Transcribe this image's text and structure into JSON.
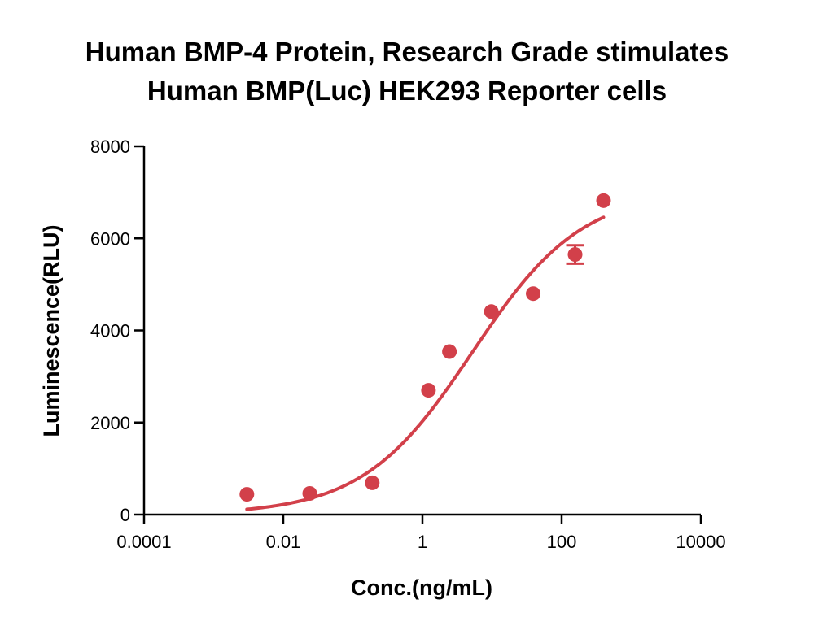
{
  "chart_data": {
    "type": "scatter",
    "title_lines": [
      "Human BMP-4 Protein, Research Grade stimulates",
      "Human BMP(Luc) HEK293 Reporter cells"
    ],
    "xlabel": "Conc.(ng/mL)",
    "ylabel": "Luminescence(RLU)",
    "x_scale": "log",
    "xlim": [
      0.0001,
      10000
    ],
    "ylim": [
      0,
      8000
    ],
    "x_ticks": [
      {
        "value": 0.0001,
        "label": "0.0001"
      },
      {
        "value": 0.01,
        "label": "0.01"
      },
      {
        "value": 1,
        "label": "1"
      },
      {
        "value": 100,
        "label": "100"
      },
      {
        "value": 10000,
        "label": "10000"
      }
    ],
    "y_ticks": [
      {
        "value": 0,
        "label": "0"
      },
      {
        "value": 2000,
        "label": "2000"
      },
      {
        "value": 4000,
        "label": "4000"
      },
      {
        "value": 6000,
        "label": "6000"
      },
      {
        "value": 8000,
        "label": "8000"
      }
    ],
    "grid": false,
    "color": "#d2404a",
    "points": [
      {
        "x": 0.003,
        "y": 440
      },
      {
        "x": 0.024,
        "y": 460
      },
      {
        "x": 0.19,
        "y": 690
      },
      {
        "x": 1.22,
        "y": 2700
      },
      {
        "x": 2.44,
        "y": 3540
      },
      {
        "x": 9.77,
        "y": 4410
      },
      {
        "x": 39,
        "y": 4800
      },
      {
        "x": 156,
        "y": 5650,
        "err": 200
      },
      {
        "x": 400,
        "y": 6820
      }
    ],
    "fit_curve": {
      "type": "4PL",
      "bottom": 0,
      "top": 7050,
      "ec50": 5.2,
      "hill": 0.55,
      "x_start": 0.003,
      "x_end": 400
    }
  }
}
